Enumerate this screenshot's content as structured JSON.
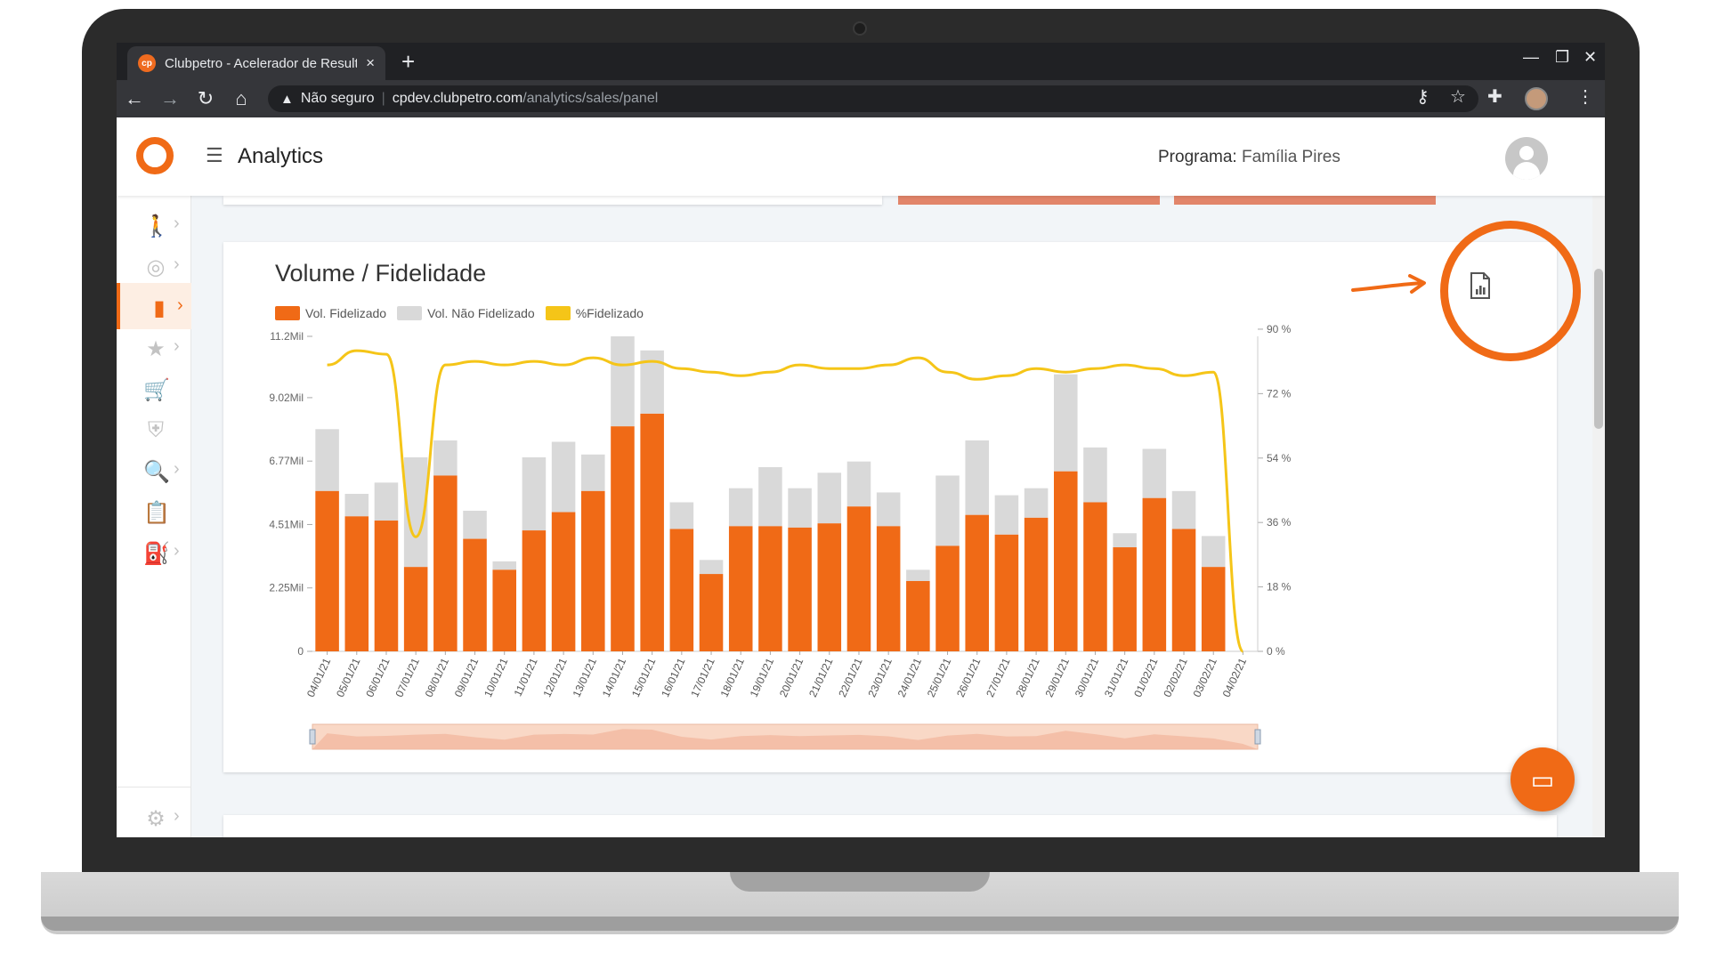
{
  "browser": {
    "tab_title": "Clubpetro - Acelerador de Resulta",
    "tab_close": "×",
    "new_tab": "+",
    "favicon_text": "cp",
    "security_label": "Não seguro",
    "url_host": "cpdev.clubpetro.com",
    "url_path": "/analytics/sales/panel"
  },
  "app": {
    "title": "Analytics",
    "program_label": "Programa:",
    "program_value": "Família Pires"
  },
  "sidebar": {
    "items": [
      {
        "icon": "person-run-icon",
        "glyph": "🚶",
        "has_chevron": true,
        "active": false
      },
      {
        "icon": "target-icon",
        "glyph": "◎",
        "has_chevron": true,
        "active": false
      },
      {
        "icon": "bar-chart-icon",
        "glyph": "▮",
        "has_chevron": true,
        "active": true
      },
      {
        "icon": "star-icon",
        "glyph": "★",
        "has_chevron": true,
        "active": false
      },
      {
        "icon": "cart-add-icon",
        "glyph": "🛒",
        "has_chevron": false,
        "active": false
      },
      {
        "icon": "shield-check-icon",
        "glyph": "⛨",
        "has_chevron": false,
        "active": false
      },
      {
        "icon": "search-document-icon",
        "glyph": "🔍",
        "has_chevron": true,
        "active": false
      },
      {
        "icon": "clipboard-icon",
        "glyph": "📋",
        "has_chevron": false,
        "active": false
      },
      {
        "icon": "fuel-pump-icon",
        "glyph": "⛽",
        "has_chevron": true,
        "active": false
      }
    ],
    "settings_icon": "gear-icon"
  },
  "panel": {
    "title": "Volume / Fidelidade",
    "export_icon": "report-file-icon"
  },
  "colors": {
    "accent": "#f06a16",
    "fidelizado": "#f06a16",
    "nao_fidelizado": "#d9d9d9",
    "pct_line": "#f5c518"
  },
  "chart_data": {
    "type": "bar",
    "categories": [
      "04/01/21",
      "05/01/21",
      "06/01/21",
      "07/01/21",
      "08/01/21",
      "09/01/21",
      "10/01/21",
      "11/01/21",
      "12/01/21",
      "13/01/21",
      "14/01/21",
      "15/01/21",
      "16/01/21",
      "17/01/21",
      "18/01/21",
      "19/01/21",
      "20/01/21",
      "21/01/21",
      "22/01/21",
      "23/01/21",
      "24/01/21",
      "25/01/21",
      "26/01/21",
      "27/01/21",
      "28/01/21",
      "29/01/21",
      "30/01/21",
      "31/01/21",
      "01/02/21",
      "02/02/21",
      "03/02/21",
      "04/02/21"
    ],
    "series": [
      {
        "name": "Vol. Fidelizado",
        "stack": true,
        "values": [
          5700,
          4800,
          4650,
          3000,
          6250,
          4000,
          2900,
          4300,
          4950,
          5700,
          8000,
          8450,
          4350,
          2750,
          4450,
          4450,
          4400,
          4550,
          5150,
          4450,
          2500,
          3750,
          4850,
          4150,
          4750,
          6400,
          5300,
          3700,
          5450,
          4350,
          3000,
          0
        ]
      },
      {
        "name": "Vol. Não Fidelizado",
        "stack": true,
        "values": [
          2200,
          800,
          1350,
          3900,
          1250,
          1000,
          300,
          2600,
          2500,
          1300,
          3200,
          2250,
          950,
          500,
          1350,
          2100,
          1400,
          1800,
          1600,
          1200,
          400,
          2500,
          2650,
          1400,
          1050,
          3450,
          1950,
          500,
          1750,
          1350,
          1100,
          0
        ]
      },
      {
        "name": "%Fidelizado",
        "axis": "right",
        "type": "line",
        "values": [
          80,
          84,
          83,
          32,
          80,
          81,
          80,
          81,
          80,
          82,
          80,
          81,
          79,
          78,
          77,
          78,
          80,
          79,
          79,
          80,
          82,
          78,
          76,
          77,
          79,
          78,
          79,
          80,
          79,
          77,
          78,
          0
        ]
      }
    ],
    "y_left": {
      "ticks": [
        "0",
        "2.25Mil",
        "4.51Mil",
        "6.77Mil",
        "9.02Mil",
        "11.2Mil"
      ],
      "max": 11200
    },
    "y_right": {
      "ticks": [
        "0 %",
        "18 %",
        "36 %",
        "54 %",
        "72 %",
        "90 %"
      ],
      "max": 88
    },
    "legend_position": "top-left",
    "grid": false
  }
}
